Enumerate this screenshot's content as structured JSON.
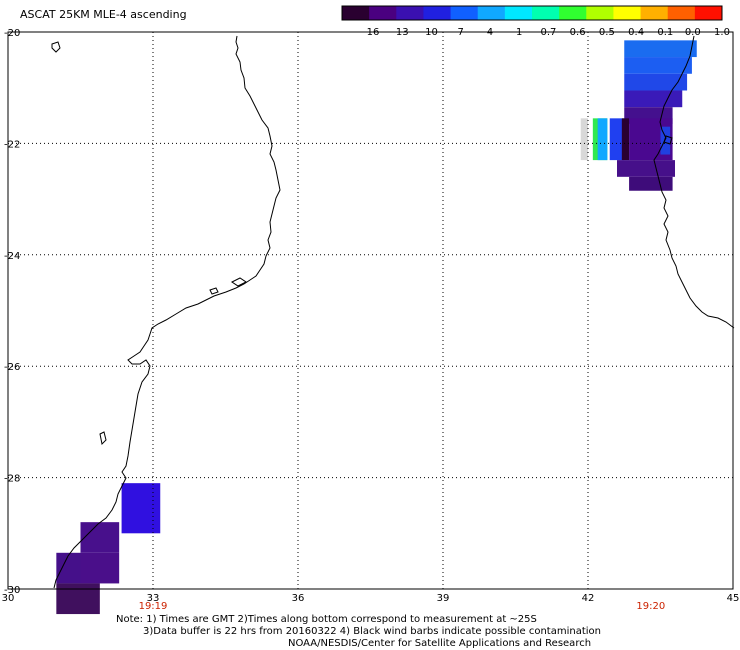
{
  "title": "ASCAT 25KM MLE-4 ascending",
  "colorbar": {
    "labels": [
      "-16",
      "-13",
      "-10",
      "-7",
      "-4",
      "-1",
      "-0.7",
      "-0.6",
      "-0.5",
      "-0.4",
      "-0.1",
      "0.0",
      "1.0"
    ],
    "colors": [
      "#2a0030",
      "#4a0080",
      "#3a10b0",
      "#2020e0",
      "#1060ff",
      "#10a8ff",
      "#00e8ff",
      "#00ffb0",
      "#30ff30",
      "#b0ff00",
      "#ffff00",
      "#ffb000",
      "#ff6000",
      "#ff1000"
    ]
  },
  "axes": {
    "lon_ticks": [
      "30",
      "33",
      "36",
      "39",
      "42",
      "45"
    ],
    "lat_ticks": [
      "-20",
      "-22",
      "-24",
      "-26",
      "-28",
      "-30"
    ]
  },
  "times": [
    {
      "label": "19:19",
      "lon": 33
    },
    {
      "label": "19:20",
      "lon": 43.3
    }
  ],
  "notes": {
    "line1": "Note: 1) Times are GMT 2)Times along bottom correspond to measurement at ~25S",
    "line2": "3)Data buffer is 22 hrs from 20160322 4) Black wind barbs indicate possible contamination",
    "line3": "NOAA/NESDIS/Center for Satellite Applications and Research"
  },
  "chart_data": {
    "type": "heatmap",
    "title": "ASCAT 25KM MLE-4 ascending",
    "xlim": [
      30,
      45
    ],
    "ylim": [
      -30,
      -20
    ],
    "grid": true,
    "cells": [
      {
        "lon": 42.75,
        "lat": -20.15,
        "w": 1.5,
        "h": 0.3,
        "color": "#1a6cf0"
      },
      {
        "lon": 42.75,
        "lat": -20.45,
        "w": 1.4,
        "h": 0.3,
        "color": "#1c5ef2"
      },
      {
        "lon": 42.75,
        "lat": -20.75,
        "w": 1.3,
        "h": 0.3,
        "color": "#2048e8"
      },
      {
        "lon": 42.75,
        "lat": -21.05,
        "w": 1.2,
        "h": 0.3,
        "color": "#3a1ab8"
      },
      {
        "lon": 42.75,
        "lat": -21.35,
        "w": 1.0,
        "h": 0.3,
        "color": "#44108e"
      },
      {
        "lon": 42.1,
        "lat": -21.55,
        "w": 0.3,
        "h": 0.75,
        "color": "#30e850"
      },
      {
        "lon": 42.2,
        "lat": -21.55,
        "w": 0.2,
        "h": 0.75,
        "color": "#10a8ff"
      },
      {
        "lon": 42.45,
        "lat": -21.55,
        "w": 0.3,
        "h": 0.75,
        "color": "#2040f0"
      },
      {
        "lon": 42.7,
        "lat": -21.55,
        "w": 0.15,
        "h": 0.75,
        "color": "#2a0030"
      },
      {
        "lon": 42.85,
        "lat": -21.55,
        "w": 0.9,
        "h": 0.75,
        "color": "#4a0890"
      },
      {
        "lon": 43.5,
        "lat": -21.7,
        "w": 0.2,
        "h": 0.5,
        "color": "#2040e0"
      },
      {
        "lon": 42.6,
        "lat": -22.3,
        "w": 1.2,
        "h": 0.3,
        "color": "#46108a"
      },
      {
        "lon": 42.85,
        "lat": -22.6,
        "w": 0.9,
        "h": 0.25,
        "color": "#3e0c7a"
      },
      {
        "lon": 32.35,
        "lat": -28.1,
        "w": 0.8,
        "h": 0.9,
        "color": "#3010e0"
      },
      {
        "lon": 31.5,
        "lat": -28.8,
        "w": 0.8,
        "h": 0.55,
        "color": "#48108c"
      },
      {
        "lon": 31.5,
        "lat": -29.35,
        "w": 0.8,
        "h": 0.55,
        "color": "#4a0f8a"
      },
      {
        "lon": 31.0,
        "lat": -29.35,
        "w": 0.5,
        "h": 0.55,
        "color": "#45108a"
      },
      {
        "lon": 31.0,
        "lat": -29.9,
        "w": 0.9,
        "h": 0.55,
        "color": "#40105e"
      }
    ]
  }
}
